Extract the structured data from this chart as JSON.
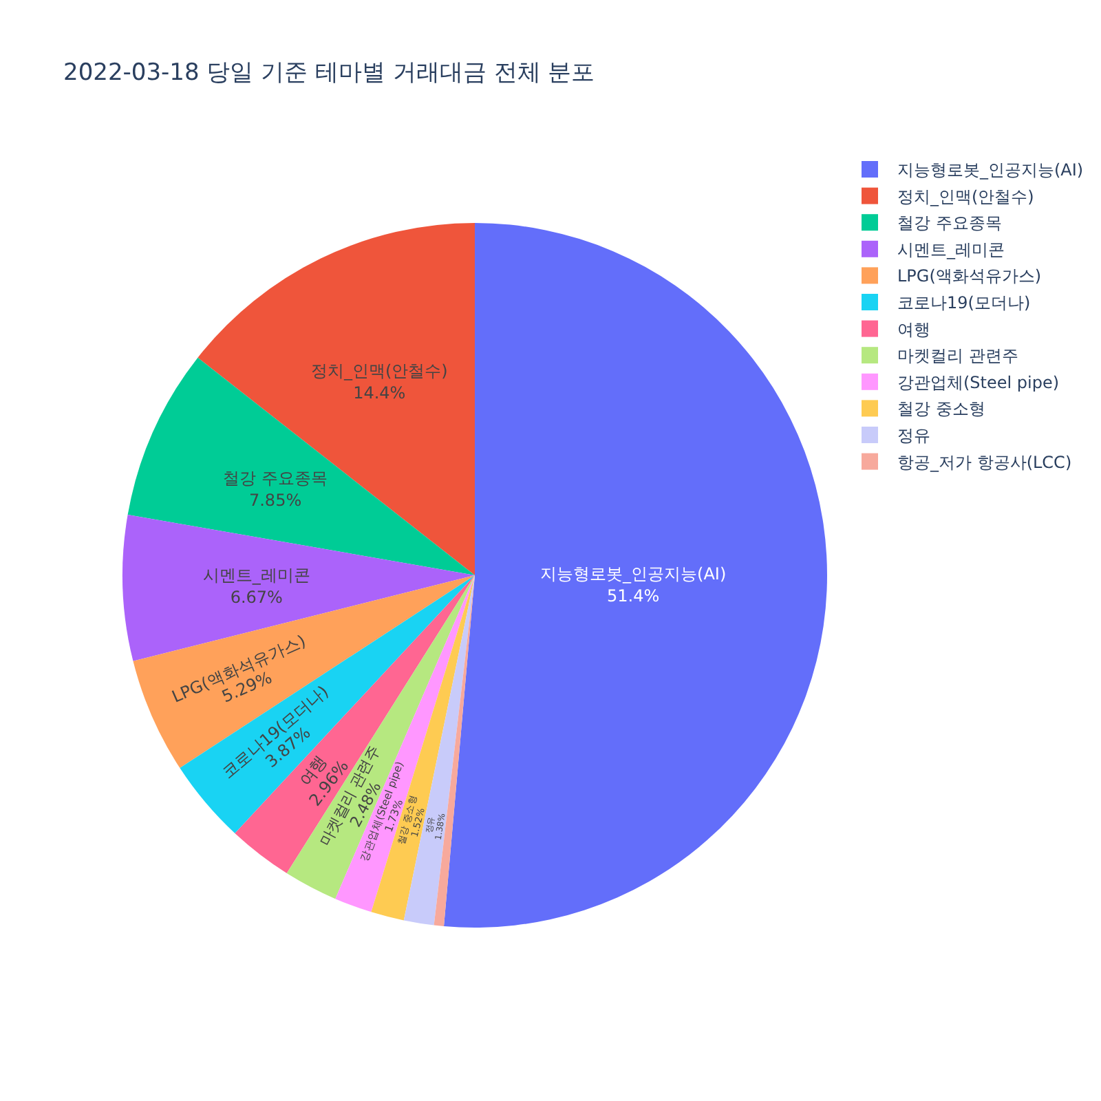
{
  "chart_data": {
    "type": "pie",
    "title": "2022-03-18 당일 기준 테마별 거래대금 전체 분포",
    "categories": [
      "지능형로봇_인공지능(AI)",
      "정치_인맥(안철수)",
      "철강 주요종목",
      "시멘트_레미콘",
      "LPG(액화석유가스)",
      "코로나19(모더나)",
      "여행",
      "마켓컬리 관련주",
      "강관업체(Steel pipe)",
      "철강 중소형",
      "정유",
      "항공_저가 항공사(LCC)"
    ],
    "values": [
      51.4,
      14.4,
      7.85,
      6.67,
      5.29,
      3.87,
      2.96,
      2.48,
      1.73,
      1.52,
      1.38,
      0.45
    ],
    "value_labels": [
      "51.4%",
      "14.4%",
      "7.85%",
      "6.67%",
      "5.29%",
      "3.87%",
      "2.96%",
      "2.48%",
      "1.73%",
      "1.52%",
      "1.38%",
      null
    ],
    "colors": [
      "#636efa",
      "#ef553b",
      "#00cc96",
      "#ab63fa",
      "#ffa15a",
      "#19d3f3",
      "#ff6692",
      "#b6e880",
      "#ff97ff",
      "#fecb52",
      "#c8cbfa",
      "#f7a99c"
    ],
    "legend": "top right"
  }
}
